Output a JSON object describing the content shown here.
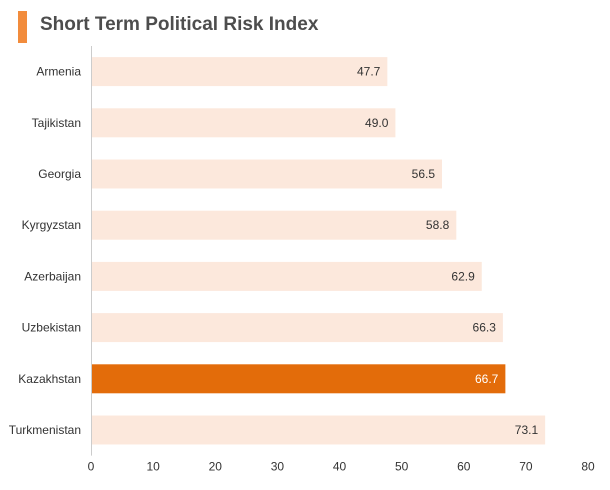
{
  "chart_data": {
    "type": "bar",
    "orientation": "horizontal",
    "title": "Short Term Political Risk Index",
    "categories": [
      "Armenia",
      "Tajikistan",
      "Georgia",
      "Kyrgyzstan",
      "Azerbaijan",
      "Uzbekistan",
      "Kazakhstan",
      "Turkmenistan"
    ],
    "values": [
      47.7,
      49.0,
      56.5,
      58.8,
      62.9,
      66.3,
      66.7,
      73.1
    ],
    "value_labels": [
      "47.7",
      "49.0",
      "56.5",
      "58.8",
      "62.9",
      "66.3",
      "66.7",
      "73.1"
    ],
    "highlight": "Kazakhstan",
    "xlim": [
      0,
      80
    ],
    "xticks": [
      0,
      10,
      20,
      30,
      40,
      50,
      60,
      70,
      80
    ],
    "xlabel": "",
    "ylabel": "",
    "grid": false,
    "colors": {
      "bar": "#fce8dc",
      "highlight_bar": "#e36c0a",
      "accent": "#f28c3c",
      "label": "#333333",
      "highlight_label": "#ffffff",
      "axis": "#cccccc"
    }
  }
}
